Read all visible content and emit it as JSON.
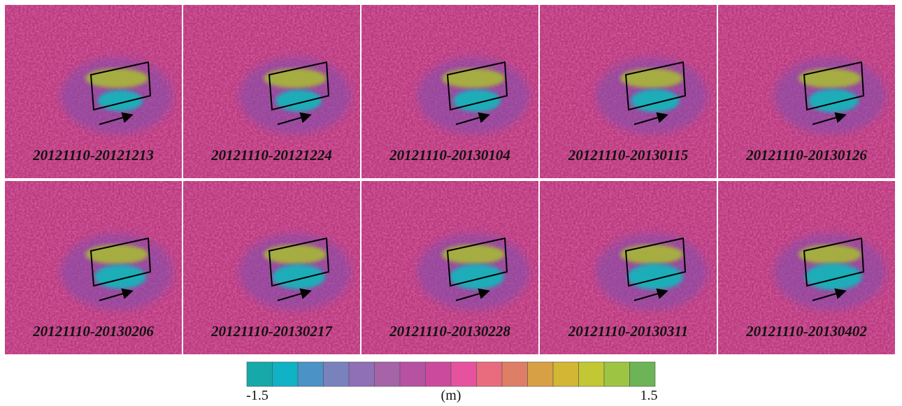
{
  "panels": [
    "20121110-20121213",
    "20121110-20121224",
    "20121110-20130104",
    "20121110-20130115",
    "20121110-20130126",
    "20121110-20130206",
    "20121110-20130217",
    "20121110-20130228",
    "20121110-20130311",
    "20121110-20130402"
  ],
  "colorbar": {
    "min": -1.5,
    "max": 1.5,
    "unit": "(m)",
    "colors": [
      "#17a9a9",
      "#10b2c6",
      "#4b92c6",
      "#7a82be",
      "#8f6fb6",
      "#a663a8",
      "#b752a2",
      "#cc4a9e",
      "#e6529e",
      "#e86c7e",
      "#de7e66",
      "#d8a044",
      "#d2b634",
      "#c2c834",
      "#9ec444",
      "#6cb456"
    ]
  }
}
